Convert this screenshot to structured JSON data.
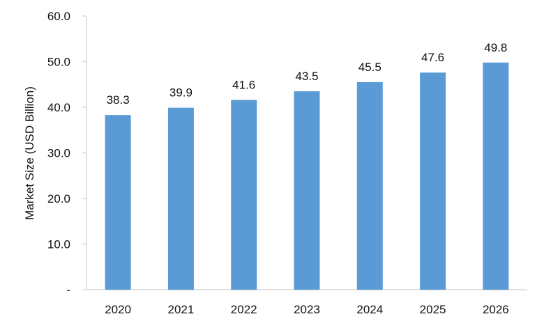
{
  "chart_data": {
    "type": "bar",
    "categories": [
      "2020",
      "2021",
      "2022",
      "2023",
      "2024",
      "2025",
      "2026"
    ],
    "values": [
      38.3,
      39.9,
      41.6,
      43.5,
      45.5,
      47.6,
      49.8
    ],
    "value_labels": [
      "38.3",
      "39.9",
      "41.6",
      "43.5",
      "45.5",
      "47.6",
      "49.8"
    ],
    "title": "",
    "xlabel": "",
    "ylabel": "Market Size (USD Billion)",
    "ylim": [
      0,
      60
    ],
    "yticks": [
      0,
      10,
      20,
      30,
      40,
      50,
      60
    ],
    "ytick_labels": [
      "-",
      "10.0",
      "20.0",
      "30.0",
      "40.0",
      "50.0",
      "60.0"
    ],
    "grid": false,
    "legend": "none",
    "bar_color": "#5b9bd5",
    "axis_color": "#d9d9d9"
  }
}
